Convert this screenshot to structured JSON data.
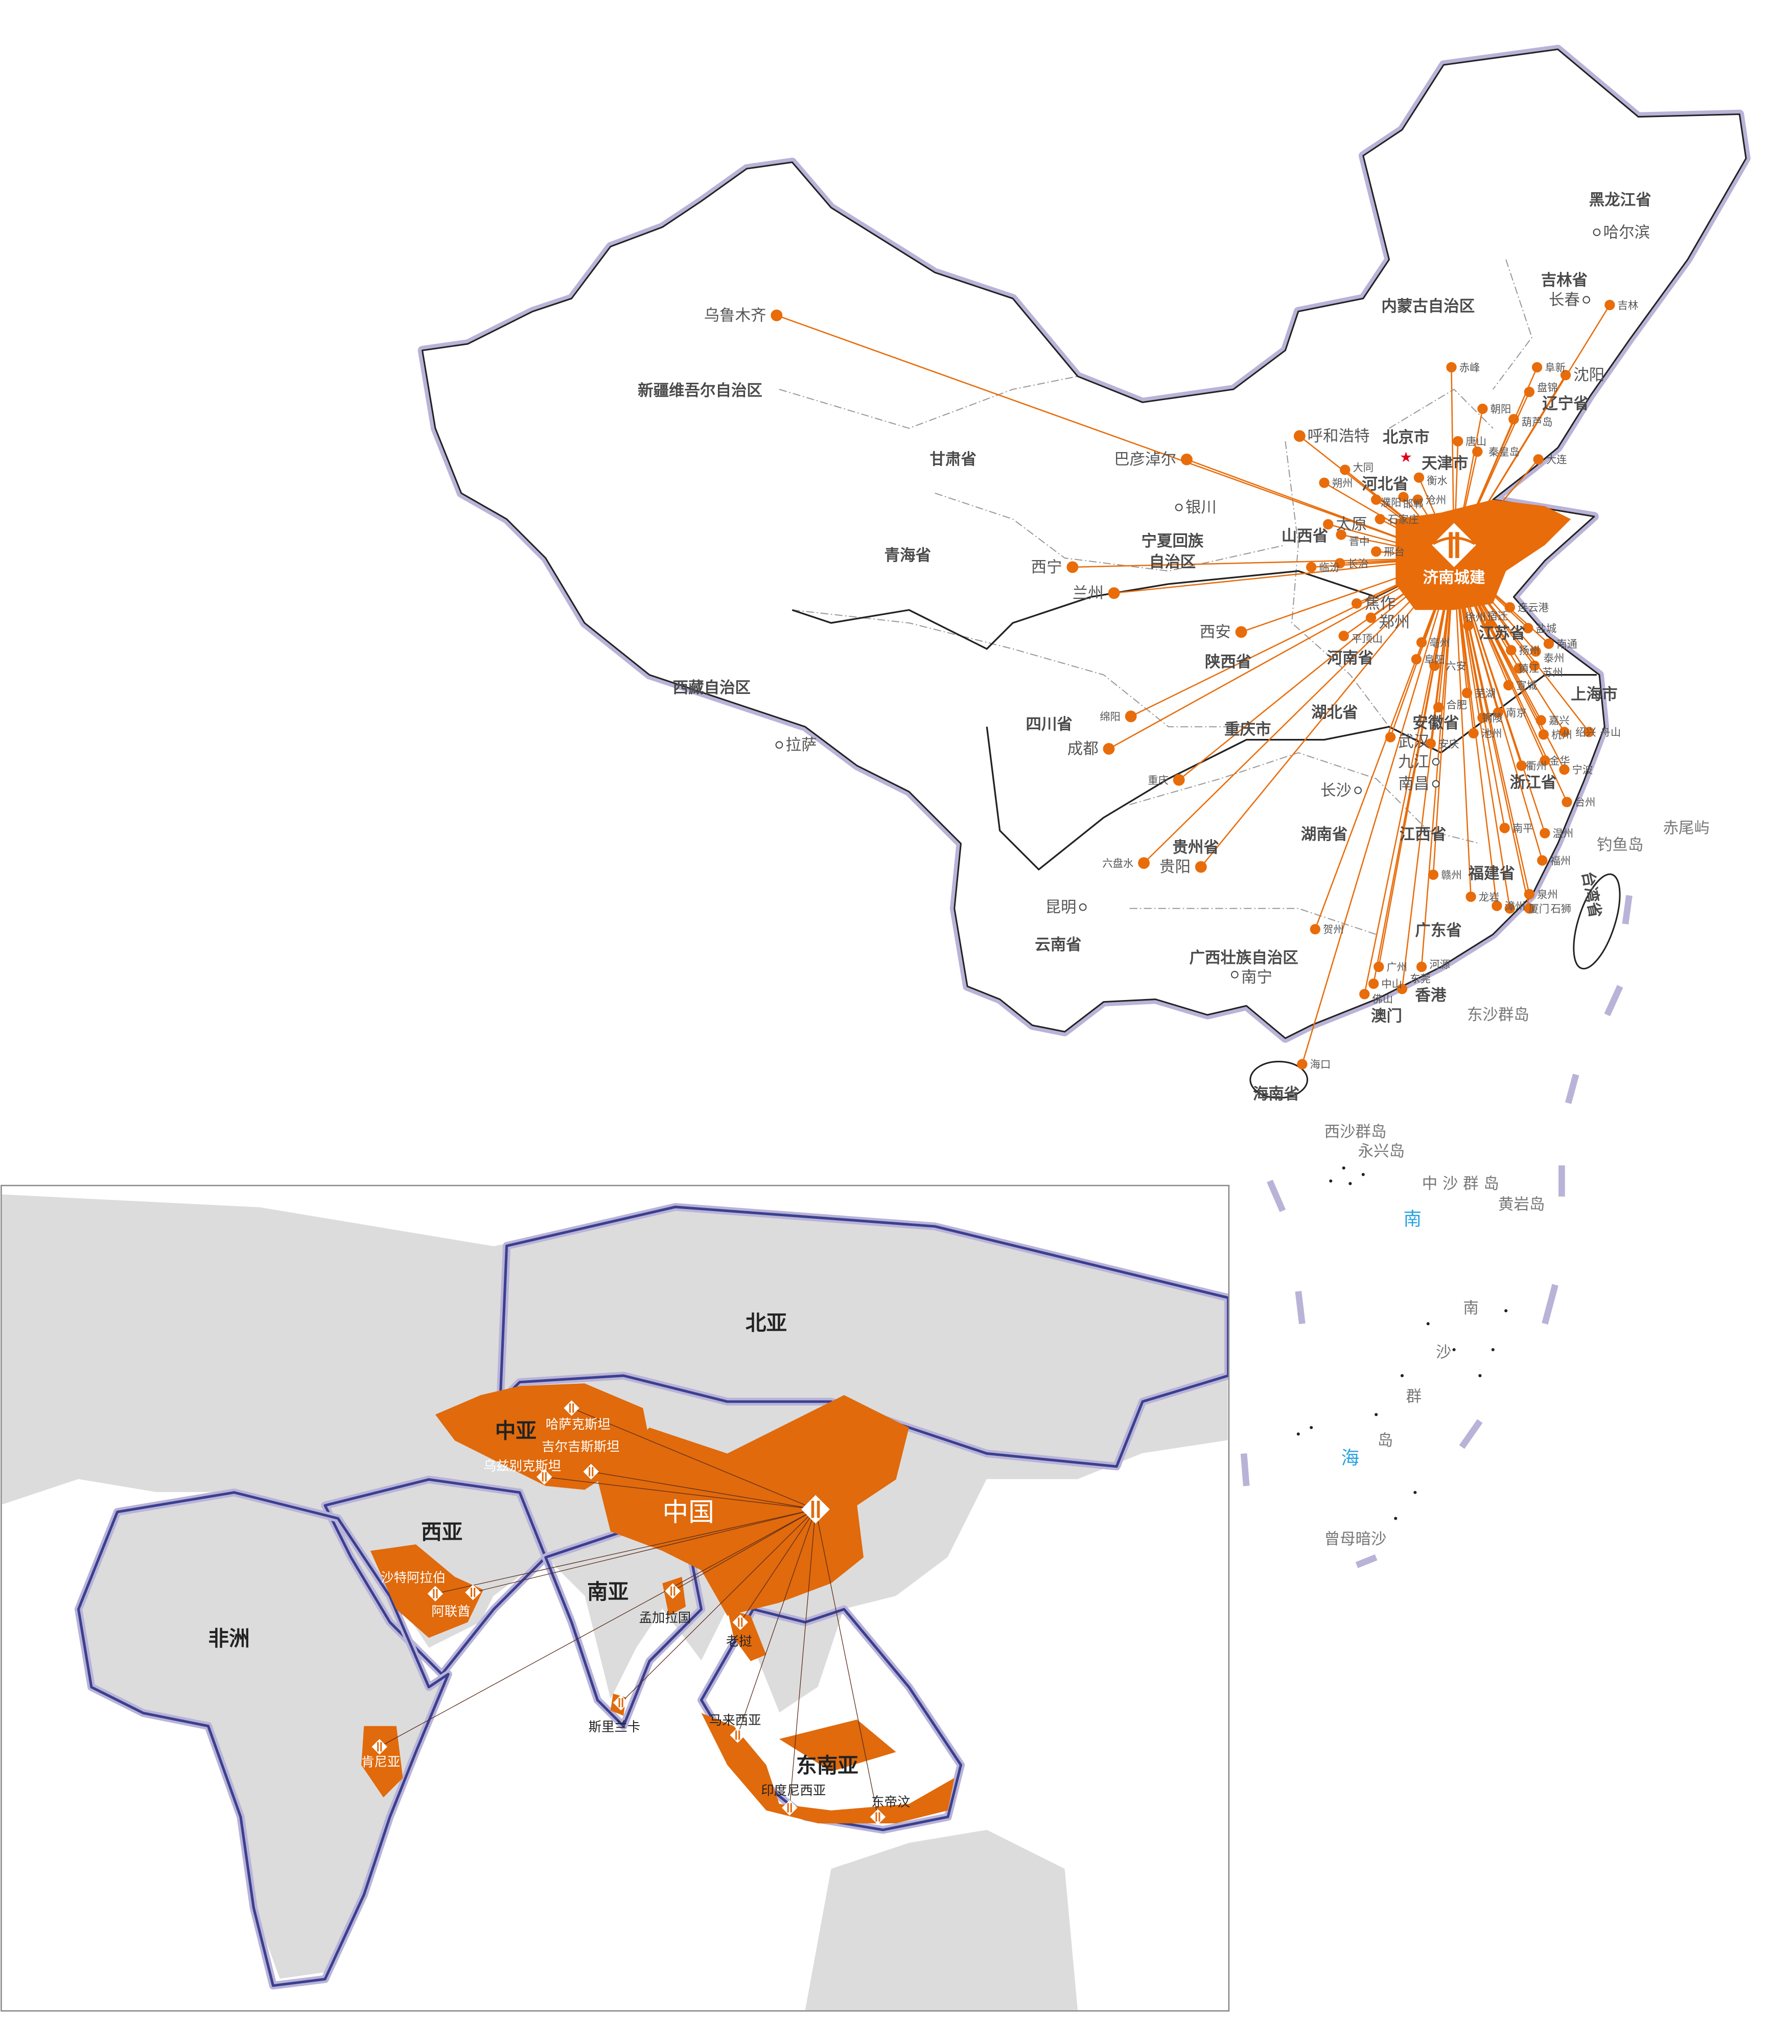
{
  "colors": {
    "accent": "#e86c0a",
    "border_halo": "#b9b3d8",
    "land_gray": "#dcdcdc",
    "region_orange": "#e06a0c",
    "outline": "#3a3f8f",
    "capital_star": "#e0001b",
    "sea_label": "#2aa3e0"
  },
  "brand": {
    "name": "济南城建",
    "logo_icon": "jinan-urban-construction-logo"
  },
  "china_map": {
    "provinces": [
      "黑龙江省",
      "吉林省",
      "内蒙古自治区",
      "辽宁省",
      "北京市",
      "天津市",
      "河北省",
      "山西省",
      "宁夏回族",
      "自治区",
      "甘肃省",
      "青海省",
      "新疆维吾尔自治区",
      "西藏自治区",
      "陕西省",
      "四川省",
      "重庆市",
      "贵州省",
      "云南省",
      "广西壮族自治区",
      "湖南省",
      "湖北省",
      "河南省",
      "江西省",
      "福建省",
      "广东省",
      "海南省",
      "浙江省",
      "上海市",
      "江苏省",
      "安徽省",
      "香港",
      "澳门",
      "台湾省"
    ],
    "capitals": [
      "哈尔滨",
      "长春",
      "银川",
      "拉萨",
      "昆明",
      "南宁",
      "长沙",
      "南昌",
      "九江"
    ],
    "connected_cities": [
      "乌鲁木齐",
      "巴彦淖尔",
      "呼和浩特",
      "西宁",
      "兰州",
      "西安",
      "绵阳",
      "成都",
      "重庆",
      "六盘水",
      "贵阳",
      "吉林",
      "赤峰",
      "阜新",
      "沈阳",
      "盘锦",
      "朝阳",
      "葫芦岛",
      "唐山",
      "秦皇岛",
      "大连",
      "大同",
      "朔州",
      "太原",
      "衡水",
      "沧州",
      "石家庄",
      "晋中",
      "长治",
      "邢台",
      "邯郸",
      "临汾",
      "濮阳",
      "焦作",
      "郑州",
      "平顶山",
      "武汉",
      "连云港",
      "盐城",
      "南通",
      "泰州",
      "苏州",
      "扬州",
      "宿迁",
      "徐州",
      "亳州",
      "阜阳",
      "六安",
      "合肥",
      "芜湖",
      "宣城",
      "镇江",
      "南京",
      "铜陵",
      "池州",
      "安庆",
      "嘉兴",
      "杭州",
      "绍兴",
      "舟山",
      "宁波",
      "金华",
      "衢州",
      "台州",
      "温州",
      "福州",
      "南平",
      "赣州",
      "龙岩",
      "漳州",
      "厦门",
      "泉州",
      "石狮",
      "贺州",
      "广州",
      "中山",
      "佛山",
      "东莞",
      "河源",
      "海口"
    ],
    "islands": [
      "东沙群岛",
      "钓鱼岛",
      "赤尾屿",
      "西沙群岛",
      "永兴岛",
      "中 沙 群 岛",
      "黄岩岛",
      "曾母暗沙"
    ],
    "south_china_sea": [
      "南",
      "海",
      "南",
      "沙",
      "群",
      "岛"
    ]
  },
  "world_map": {
    "regions": [
      "北亚",
      "中亚",
      "西亚",
      "南亚",
      "非洲",
      "东南亚"
    ],
    "china_label": "中国",
    "countries": [
      "哈萨克斯坦",
      "吉尔吉斯斯坦",
      "乌兹别克斯坦",
      "沙特阿拉伯",
      "阿联酋",
      "孟加拉国",
      "老挝",
      "斯里兰卡",
      "马来西亚",
      "印度尼西亚",
      "东帝汶",
      "肯尼亚"
    ]
  }
}
